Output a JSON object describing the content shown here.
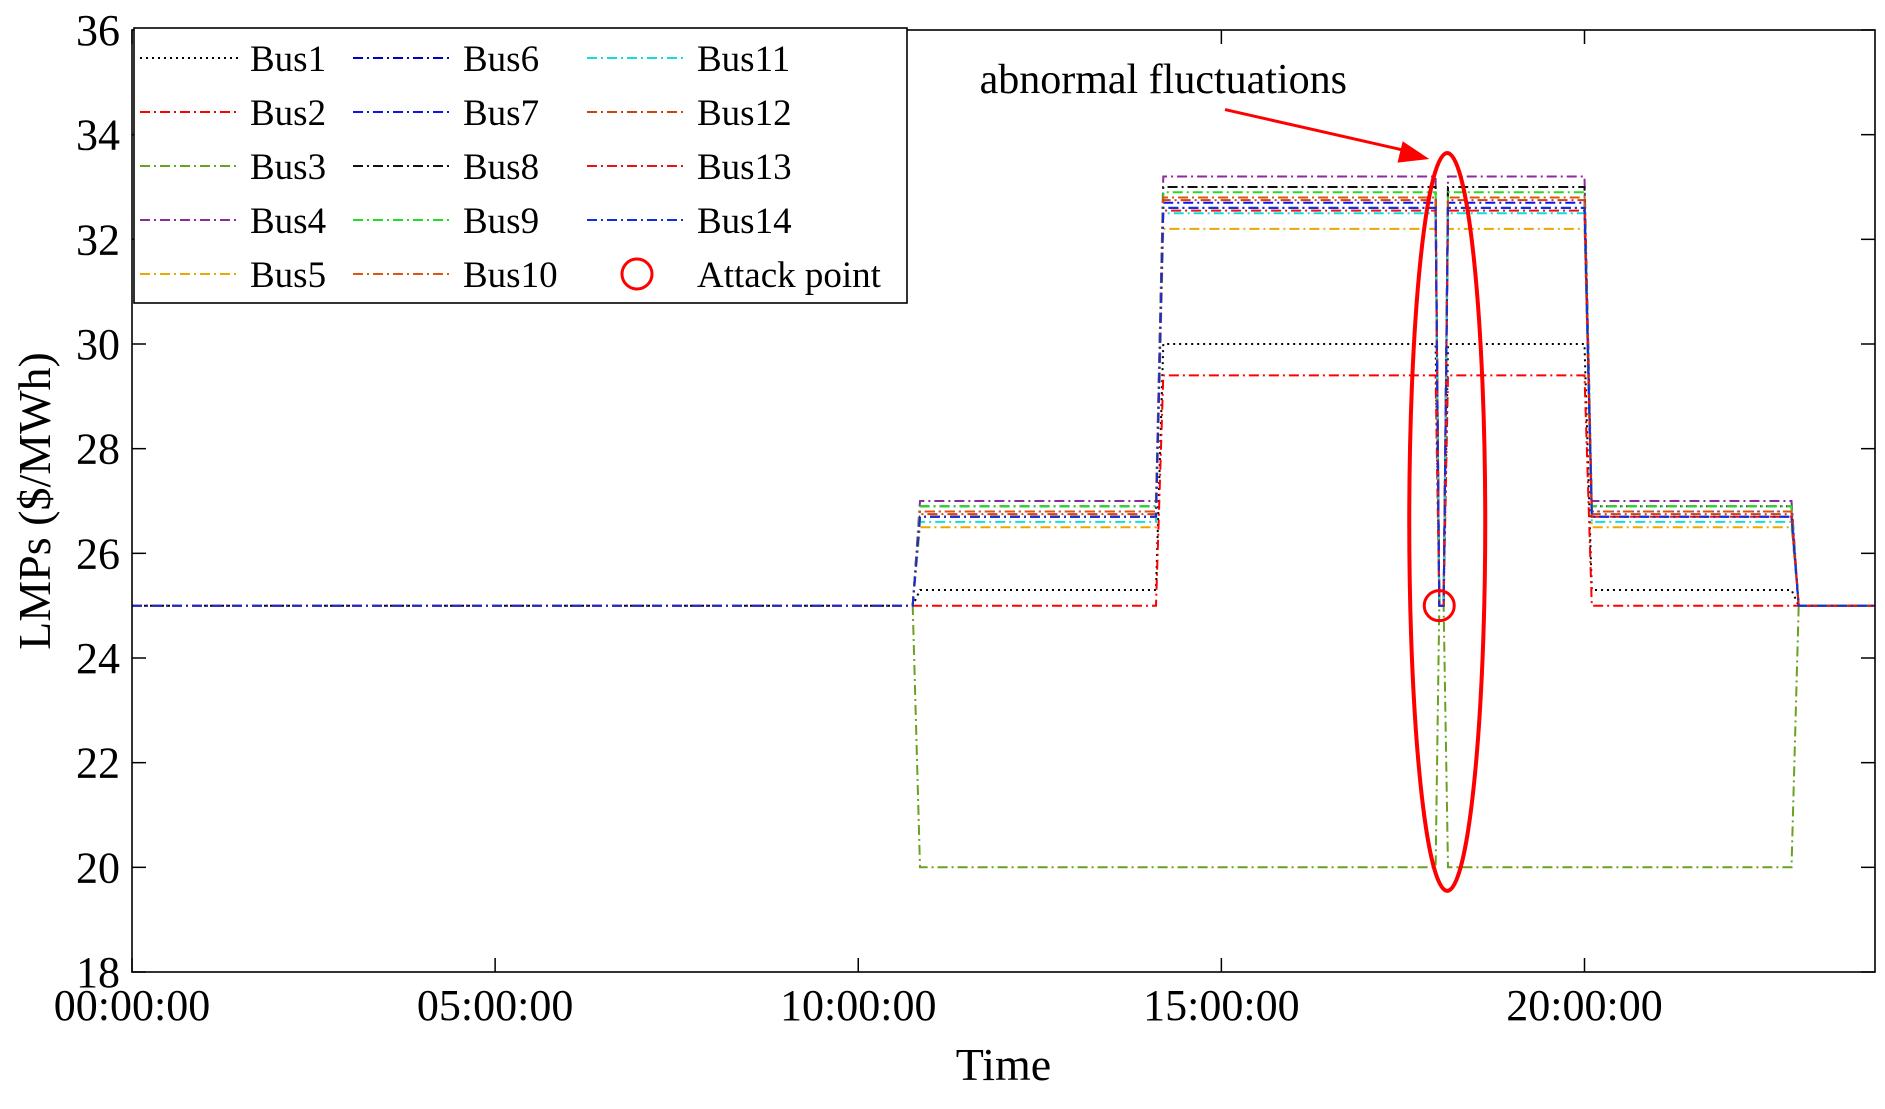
{
  "chart_data": {
    "type": "line",
    "xlabel": "Time",
    "ylabel": "LMPs ($/MWh)",
    "xlim": [
      0,
      24
    ],
    "ylim": [
      18,
      36
    ],
    "x_ticks": [
      0,
      5,
      10,
      15,
      20
    ],
    "x_tick_labels": [
      "00:00:00",
      "05:00:00",
      "10:00:00",
      "15:00:00",
      "20:00:00"
    ],
    "y_ticks": [
      18,
      20,
      22,
      24,
      26,
      28,
      30,
      32,
      34,
      36
    ],
    "y_tick_labels": [
      "18",
      "20",
      "22",
      "24",
      "26",
      "28",
      "30",
      "32",
      "34",
      "36"
    ],
    "grid": false,
    "legend_position": "top-left",
    "series": [
      {
        "name": "Bus1",
        "color": "#000000",
        "dash": "dotted",
        "levels": [
          25,
          25.3,
          30.0,
          25.3
        ]
      },
      {
        "name": "Bus2",
        "color": "#ff0000",
        "dash": "dashdot",
        "levels": [
          25,
          25.0,
          29.4,
          25.0
        ]
      },
      {
        "name": "Bus3",
        "color": "#6aa121",
        "dash": "dashdot",
        "levels": [
          25,
          20.0,
          20.0,
          20.0
        ]
      },
      {
        "name": "Bus4",
        "color": "#8b2b9e",
        "dash": "dashdot",
        "levels": [
          25,
          27.0,
          33.2,
          27.0
        ]
      },
      {
        "name": "Bus5",
        "color": "#eaa800",
        "dash": "dashdot",
        "levels": [
          25,
          26.5,
          32.2,
          26.5
        ]
      },
      {
        "name": "Bus6",
        "color": "#0000cc",
        "dash": "dashdot",
        "levels": [
          25,
          26.7,
          32.6,
          26.7
        ]
      },
      {
        "name": "Bus7",
        "color": "#1010ee",
        "dash": "dashdot",
        "levels": [
          25,
          26.8,
          32.7,
          26.8
        ]
      },
      {
        "name": "Bus8",
        "color": "#111111",
        "dash": "dashdot",
        "levels": [
          25,
          26.9,
          33.0,
          26.9
        ]
      },
      {
        "name": "Bus9",
        "color": "#22dd22",
        "dash": "dashdot",
        "levels": [
          25,
          26.9,
          32.9,
          26.9
        ]
      },
      {
        "name": "Bus10",
        "color": "#dd5511",
        "dash": "dashdot",
        "levels": [
          25,
          26.8,
          32.8,
          26.8
        ]
      },
      {
        "name": "Bus11",
        "color": "#11dddd",
        "dash": "dashdot",
        "levels": [
          25,
          26.6,
          32.5,
          26.6
        ]
      },
      {
        "name": "Bus12",
        "color": "#cc4411",
        "dash": "dashdot",
        "levels": [
          25,
          26.75,
          32.75,
          26.75
        ]
      },
      {
        "name": "Bus13",
        "color": "#ee1111",
        "dash": "dashdot",
        "levels": [
          25,
          26.7,
          32.55,
          26.7
        ]
      },
      {
        "name": "Bus14",
        "color": "#1030dd",
        "dash": "dashdot",
        "levels": [
          25,
          26.7,
          32.6,
          26.7
        ]
      }
    ],
    "step_times": [
      10.75,
      14.1,
      20.0,
      22.85
    ],
    "attack": {
      "legend_label": "Attack point",
      "color": "#ff0000",
      "time": 18.0,
      "value": 25.0
    },
    "annotation": {
      "text": "abnormal fluctuations",
      "color": "#ff0000"
    }
  }
}
